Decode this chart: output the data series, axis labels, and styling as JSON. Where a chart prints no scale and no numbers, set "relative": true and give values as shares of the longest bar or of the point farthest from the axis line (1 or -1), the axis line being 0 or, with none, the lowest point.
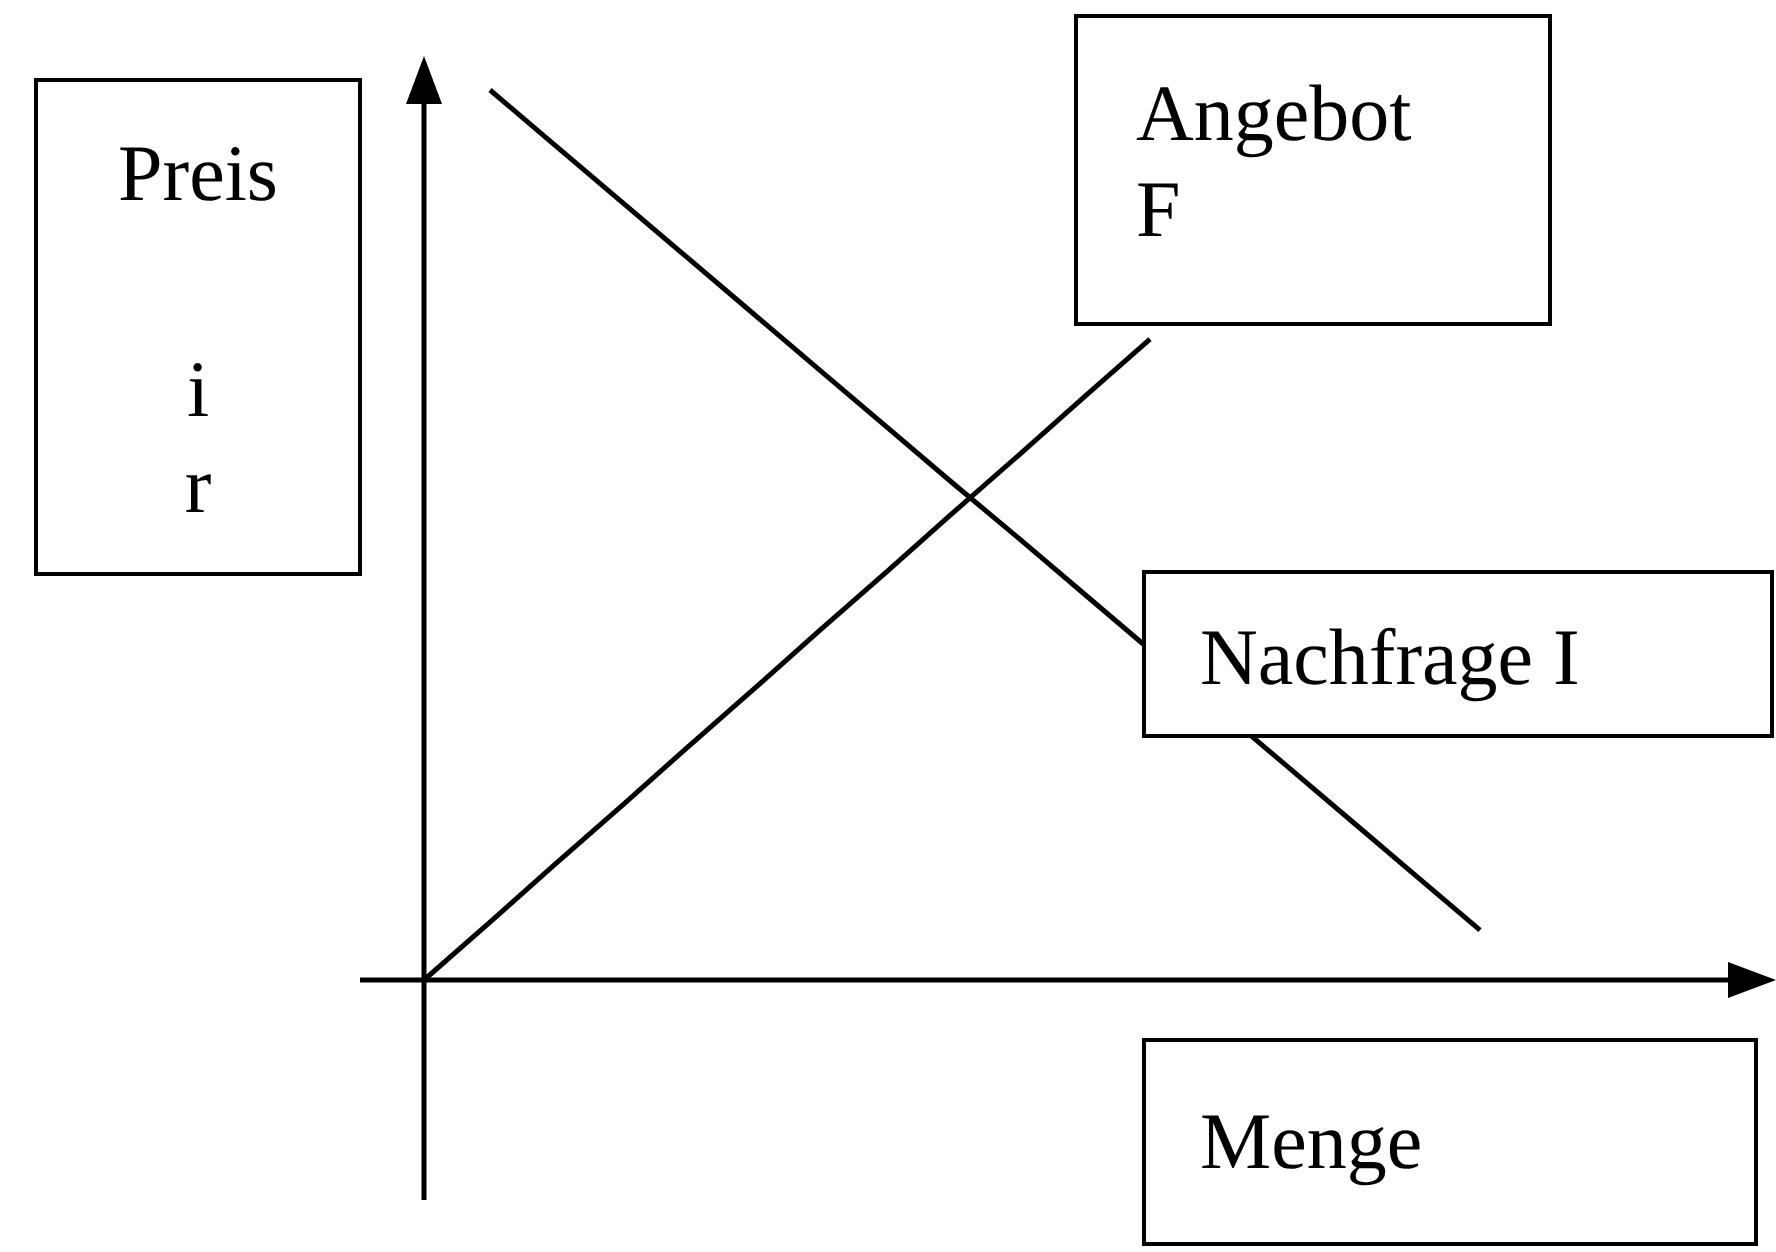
{
  "chart_data": {
    "type": "line",
    "relative": true,
    "xlabel": "Menge",
    "ylabel": "Preis\n\ni\nr",
    "categories": [
      null,
      null,
      null,
      null,
      null,
      null,
      null,
      null,
      null,
      null,
      null,
      null,
      null,
      null,
      null,
      null,
      null,
      null,
      null,
      null,
      null
    ],
    "series": [
      {
        "name": "Angebot\nF",
        "color": "#000000",
        "values": [
          0,
          0.065,
          0.131,
          0.196,
          0.262,
          0.327,
          0.393,
          0.458,
          0.524,
          0.589,
          0.655,
          0.72,
          null,
          null,
          null,
          null,
          null,
          null,
          null,
          null,
          null
        ]
      },
      {
        "name": "Nachfrage  I",
        "color": "#000000",
        "values": [
          null,
          1,
          0.937,
          0.874,
          0.811,
          0.748,
          0.685,
          0.622,
          0.559,
          0.497,
          0.434,
          null,
          null,
          0.245,
          0.182,
          0.119,
          0.056,
          null,
          null,
          null,
          null
        ]
      }
    ]
  }
}
